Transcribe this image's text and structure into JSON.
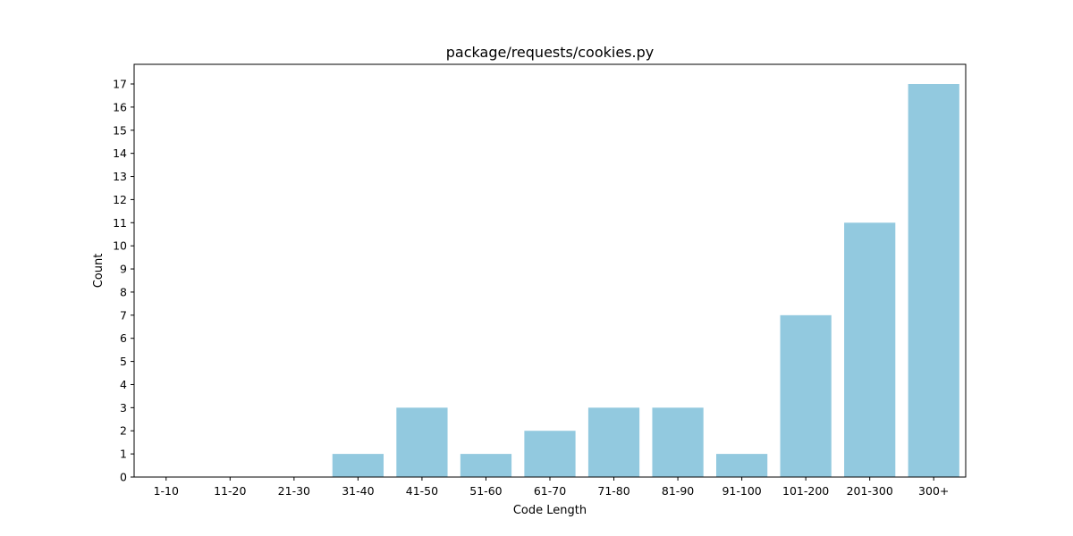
{
  "chart_data": {
    "type": "bar",
    "title": "package/requests/cookies.py",
    "xlabel": "Code Length",
    "ylabel": "Count",
    "categories": [
      "1-10",
      "11-20",
      "21-30",
      "31-40",
      "41-50",
      "51-60",
      "61-70",
      "71-80",
      "81-90",
      "91-100",
      "101-200",
      "201-300",
      "300+"
    ],
    "values": [
      0,
      0,
      0,
      1,
      3,
      1,
      2,
      3,
      3,
      1,
      7,
      11,
      17
    ],
    "ylim": [
      0,
      17.85
    ],
    "yticks": [
      "0",
      "1",
      "2",
      "3",
      "4",
      "5",
      "6",
      "7",
      "8",
      "9",
      "10",
      "11",
      "12",
      "13",
      "14",
      "15",
      "16",
      "17"
    ],
    "grid": false,
    "legend": "none",
    "bar_color": "#92c9df"
  }
}
